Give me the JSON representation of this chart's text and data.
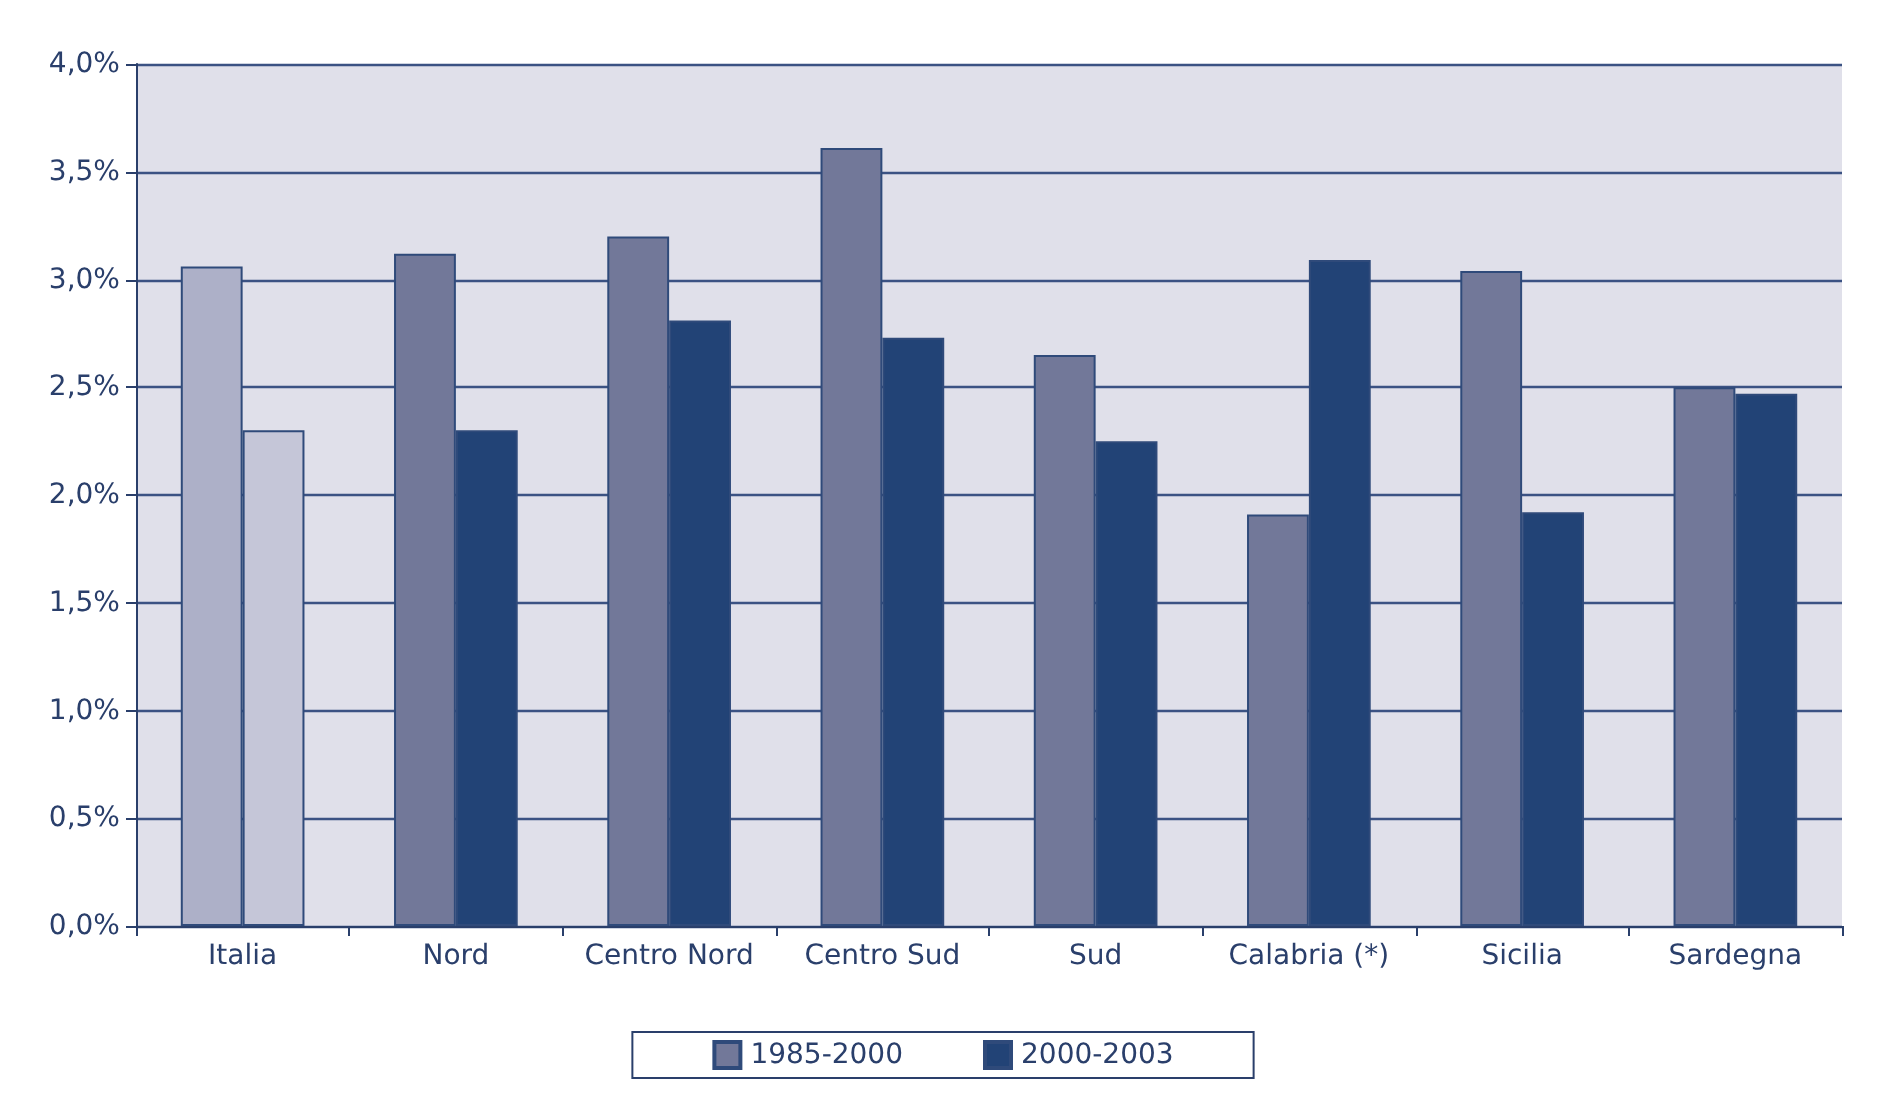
{
  "chart_data": {
    "type": "bar",
    "categories": [
      "Italia",
      "Nord",
      "Centro Nord",
      "Centro Sud",
      "Sud",
      "Calabria (*)",
      "Sicilia",
      "Sardegna"
    ],
    "series": [
      {
        "name": "1985-2000",
        "color": "#727899",
        "colors": [
          "#adb0c8",
          "#727899",
          "#727899",
          "#727899",
          "#727899",
          "#727899",
          "#727899",
          "#727899"
        ],
        "values": [
          3.06,
          3.12,
          3.2,
          3.61,
          2.65,
          1.91,
          3.04,
          2.5
        ]
      },
      {
        "name": "2000-2003",
        "color": "#224376",
        "colors": [
          "#c5c6d8",
          "#224376",
          "#224376",
          "#224376",
          "#224376",
          "#224376",
          "#224376",
          "#224376"
        ],
        "values": [
          2.3,
          2.3,
          2.81,
          2.73,
          2.25,
          3.09,
          1.92,
          2.47
        ]
      }
    ],
    "ylim": [
      0,
      4
    ],
    "yticks": [
      {
        "value": 0,
        "label": "0,0%"
      },
      {
        "value": 0.5,
        "label": "0,5%"
      },
      {
        "value": 1,
        "label": "1,0%"
      },
      {
        "value": 1.5,
        "label": "1,5%"
      },
      {
        "value": 2,
        "label": "2,0%"
      },
      {
        "value": 2.5,
        "label": "2,5%"
      },
      {
        "value": 3,
        "label": "3,0%"
      },
      {
        "value": 3.5,
        "label": "3,5%"
      },
      {
        "value": 4,
        "label": "4,0%"
      }
    ],
    "grid": "y",
    "legend": "bottom"
  }
}
